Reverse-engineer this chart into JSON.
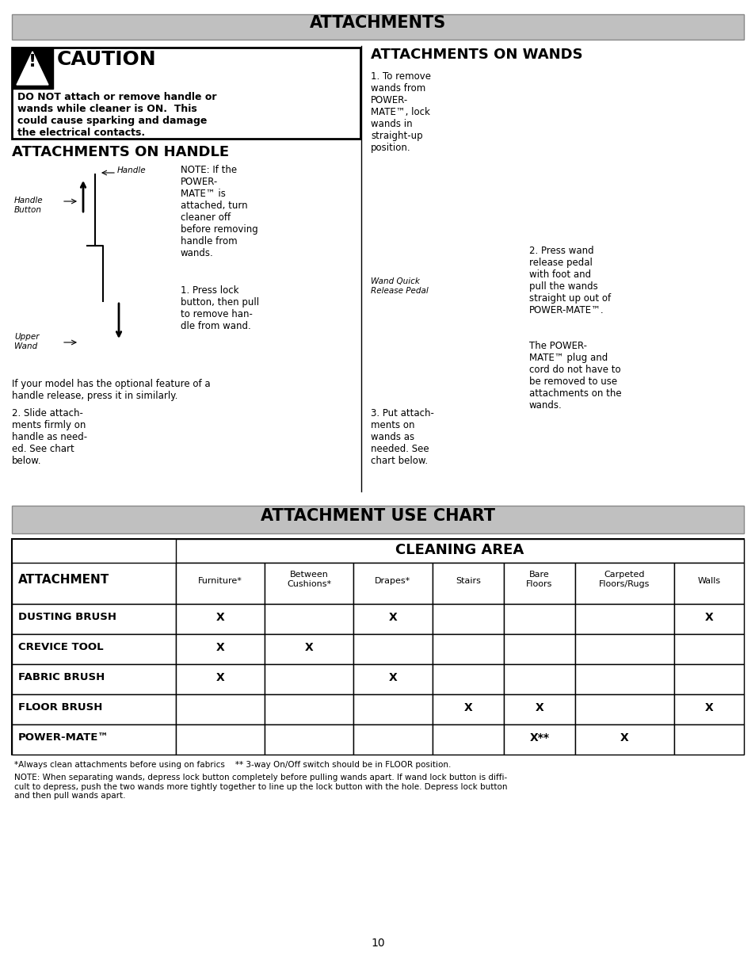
{
  "page_bg": "#ffffff",
  "title_bar_bg": "#c0c0c0",
  "title_text": "ATTACHMENTS",
  "caution_header_text": "CAUTION",
  "caution_body": "DO NOT attach or remove handle or\nwands while cleaner is ON.  This\ncould cause sparking and damage\nthe electrical contacts.",
  "left_section_title": "ATTACHMENTS ON HANDLE",
  "right_section_title": "ATTACHMENTS ON WANDS",
  "handle_note": "NOTE: If the\nPOWER-\nMATE™ is\nattached, turn\ncleaner off\nbefore removing\nhandle from\nwands.",
  "handle_step1": "1. Press lock\nbutton, then pull\nto remove han-\ndle from wand.",
  "handle_release_note": "If your model has the optional feature of a\nhandle release, press it in similarly.",
  "handle_step2": "2. Slide attach-\nments firmly on\nhandle as need-\ned. See chart\nbelow.",
  "wands_step1": "1. To remove\nwands from\nPOWER-\nMATE™, lock\nwands in\nstraight-up\nposition.",
  "wands_pedal_label": "Wand Quick\nRelease Pedal",
  "wands_step2": "2. Press wand\nrelease pedal\nwith foot and\npull the wands\nstraight up out of\nPOWER-MATE™.",
  "wands_step3_right": "The POWER-\nMATE™ plug and\ncord do not have to\nbe removed to use\nattachments on the\nwands.",
  "wands_step3": "3. Put attach-\nments on\nwands as\nneeded. See\nchart below.",
  "chart_title": "ATTACHMENT USE CHART",
  "chart_title_bg": "#c0c0c0",
  "cleaning_area_header": "CLEANING AREA",
  "col_headers": [
    "",
    "Furniture*",
    "Between\nCushions*",
    "Drapes*",
    "Stairs",
    "Bare\nFloors",
    "Carpeted\nFloors/Rugs",
    "Walls"
  ],
  "row_headers": [
    "ATTACHMENT",
    "DUSTING BRUSH",
    "CREVICE TOOL",
    "FABRIC BRUSH",
    "FLOOR BRUSH",
    "POWER-MATE™"
  ],
  "table_data": [
    [
      "X",
      "",
      "X",
      "",
      "",
      "",
      "X"
    ],
    [
      "X",
      "X",
      "",
      "",
      "",
      "",
      ""
    ],
    [
      "X",
      "",
      "X",
      "",
      "",
      "",
      ""
    ],
    [
      "",
      "",
      "",
      "X",
      "X",
      "",
      "X"
    ],
    [
      "",
      "",
      "",
      "",
      "X**",
      "X",
      ""
    ]
  ],
  "footnote1": "*Always clean attachments before using on fabrics    ** 3-way On/Off switch should be in FLOOR position.",
  "footnote2": "NOTE: When separating wands, depress lock button completely before pulling wands apart. If wand lock button is diffi-\ncult to depress, push the two wands more tightly together to line up the lock button with the hole. Depress lock button\nand then pull wands apart.",
  "page_number": "10",
  "label_handle": "Handle",
  "label_handle_button": "Handle\nButton",
  "label_upper_wand": "Upper\nWand"
}
